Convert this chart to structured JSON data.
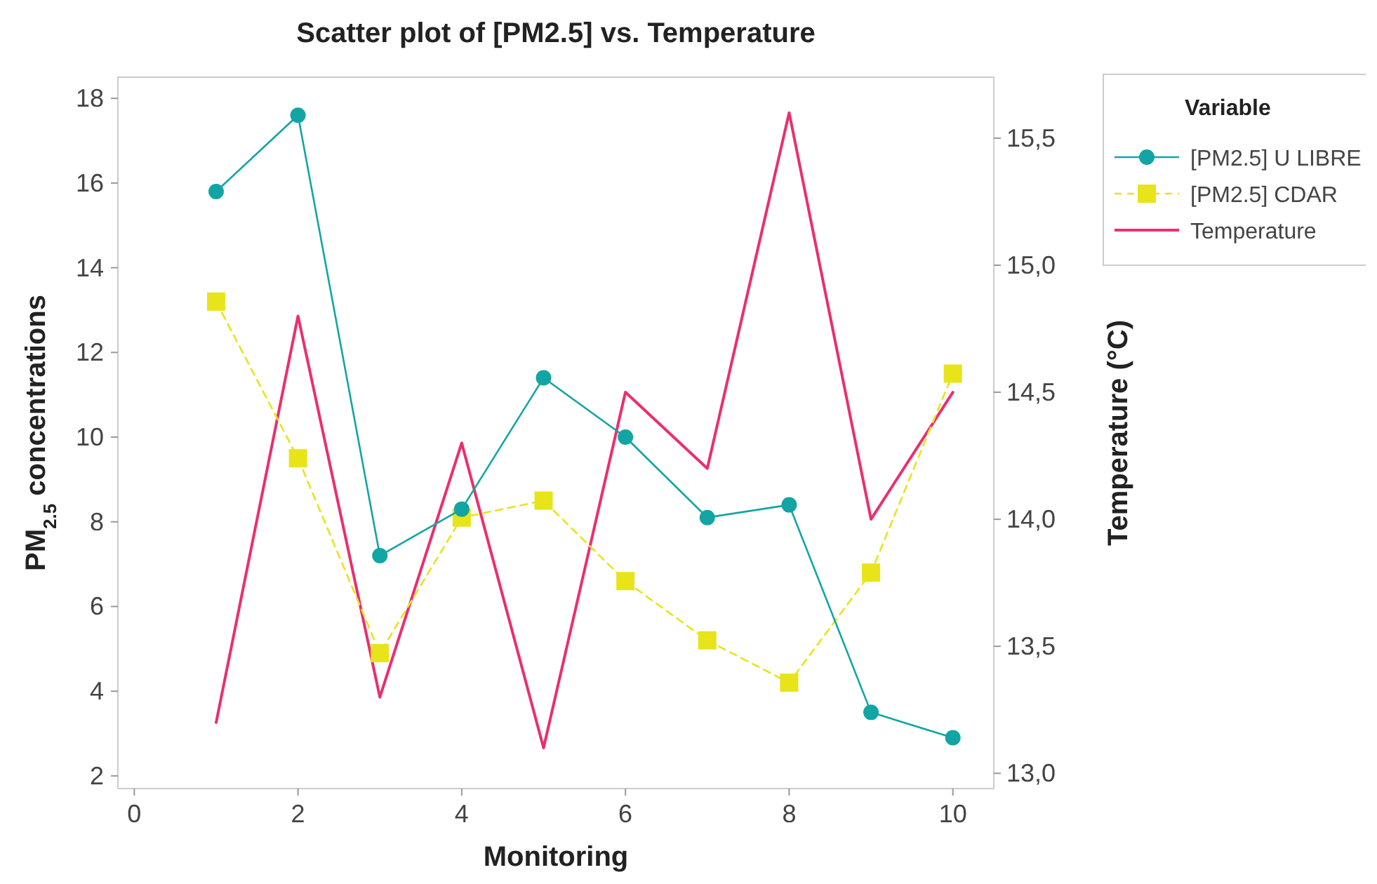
{
  "chart_data": {
    "type": "line",
    "title": "Scatter plot of [PM2.5] vs. Temperature",
    "xlabel": "Monitoring",
    "ylabel": "PM$_{2.5}$ concentrations",
    "y2label": "Temperature (°C)",
    "legend_title": "Variable",
    "legend": "top right",
    "grid": false,
    "x": [
      1,
      2,
      3,
      4,
      5,
      6,
      7,
      8,
      9,
      10
    ],
    "xlim": [
      -0.2,
      10.5
    ],
    "xticks": [
      0,
      2,
      4,
      6,
      8,
      10
    ],
    "ylim": [
      1.7,
      18.5
    ],
    "yticks": [
      2,
      4,
      6,
      8,
      10,
      12,
      14,
      16,
      18
    ],
    "y2lim": [
      12.94,
      15.74
    ],
    "y2ticks": [
      {
        "value": 13,
        "label": "13,0"
      },
      {
        "value": 13.5,
        "label": "13,5"
      },
      {
        "value": 14,
        "label": "14,0"
      },
      {
        "value": 14.5,
        "label": "14,5"
      },
      {
        "value": 15,
        "label": "15,0"
      },
      {
        "value": 15.5,
        "label": "15,5"
      }
    ],
    "series": [
      {
        "name": "[PM2.5] U LIBRE",
        "color": "#12a5a3",
        "marker": "circle",
        "line_style": "solid",
        "values": [
          15.8,
          17.6,
          7.2,
          8.3,
          11.4,
          10.0,
          8.1,
          8.4,
          3.5,
          2.9
        ]
      },
      {
        "name": "[PM2.5] CDAR",
        "color": "#e8e41a",
        "marker": "square",
        "line_style": "dashed",
        "values": [
          13.2,
          9.5,
          4.9,
          8.1,
          8.5,
          6.6,
          5.2,
          4.2,
          6.8,
          11.5
        ]
      },
      {
        "name": "Temperature",
        "color": "#ea2f6e",
        "marker": "none",
        "line_style": "solid",
        "axis": "y2",
        "values": [
          13.2,
          14.8,
          13.3,
          14.3,
          13.1,
          14.5,
          14.2,
          15.6,
          14.0,
          14.5
        ]
      }
    ]
  }
}
